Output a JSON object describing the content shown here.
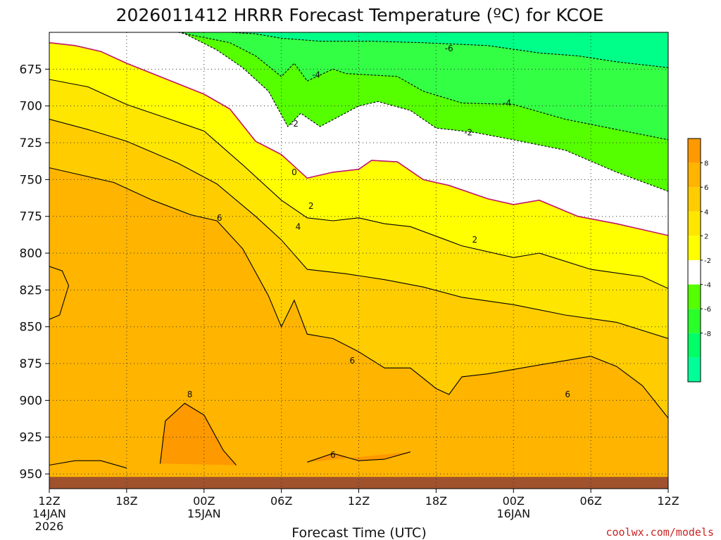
{
  "chart_data": {
    "type": "heatmap",
    "title": "2026011412 HRRR Forecast Temperature (ºC) for KCOE",
    "xlabel": "Forecast Time (UTC)",
    "ylabel": "",
    "credit": "coolwx.com/models",
    "y_axis": {
      "units": "hPa",
      "range": [
        960,
        650
      ],
      "ticks": [
        675,
        700,
        725,
        750,
        775,
        800,
        825,
        850,
        875,
        900,
        925,
        950
      ]
    },
    "x_axis": {
      "units": "forecast hour",
      "range": [
        0,
        48
      ],
      "ticks": [
        {
          "hour": 0,
          "label": "12Z",
          "label2": "14JAN",
          "label3": "2026"
        },
        {
          "hour": 6,
          "label": "18Z",
          "label2": "",
          "label3": ""
        },
        {
          "hour": 12,
          "label": "00Z",
          "label2": "15JAN",
          "label3": ""
        },
        {
          "hour": 18,
          "label": "06Z",
          "label2": "",
          "label3": ""
        },
        {
          "hour": 24,
          "label": "12Z",
          "label2": "",
          "label3": ""
        },
        {
          "hour": 30,
          "label": "18Z",
          "label2": "",
          "label3": ""
        },
        {
          "hour": 36,
          "label": "00Z",
          "label2": "16JAN",
          "label3": ""
        },
        {
          "hour": 42,
          "label": "06Z",
          "label2": "",
          "label3": ""
        },
        {
          "hour": 48,
          "label": "12Z",
          "label2": "",
          "label3": ""
        }
      ]
    },
    "grid": true,
    "colorbar": {
      "placement": "right",
      "labels": [
        "8",
        "6",
        "4",
        "2",
        "-2",
        "-4",
        "-6",
        "-8"
      ],
      "bins": [
        {
          "color": "#ff9900"
        },
        {
          "color": "#ffb400"
        },
        {
          "color": "#ffcc00"
        },
        {
          "color": "#ffe600"
        },
        {
          "color": "#ffff00"
        },
        {
          "color": "#ffffff"
        },
        {
          "color": "#55ff00"
        },
        {
          "color": "#2aff2a"
        },
        {
          "color": "#00ff66"
        },
        {
          "color": "#00ff99"
        }
      ]
    },
    "fill_colors": {
      "t_gt_8": "#ff9900",
      "t_6_8": "#ffb400",
      "t_4_6": "#ffcc00",
      "t_2_4": "#ffe600",
      "t_0_2": "#ffff00",
      "t_m2_0": "#ffffff",
      "t_m4_m2": "#55ff00",
      "t_m6_m4": "#33ff44",
      "t_lt_m6": "#00ff88",
      "ground": "#a0522d"
    },
    "contours": [
      {
        "level": -6,
        "style": "dashed",
        "points": [
          [
            8.7,
            650
          ],
          [
            14,
            650
          ],
          [
            16,
            651
          ],
          [
            18,
            654
          ],
          [
            21,
            656
          ],
          [
            25,
            656
          ],
          [
            29,
            657
          ],
          [
            34,
            659
          ],
          [
            38,
            664
          ],
          [
            41,
            666
          ],
          [
            44,
            670
          ],
          [
            48,
            674
          ]
        ]
      },
      {
        "level": -4,
        "style": "dashed",
        "points": [
          [
            10,
            650
          ],
          [
            14,
            657
          ],
          [
            16,
            666
          ],
          [
            18,
            680
          ],
          [
            19,
            671
          ],
          [
            20,
            683
          ],
          [
            22,
            675
          ],
          [
            23,
            678
          ],
          [
            27,
            680
          ],
          [
            29,
            690
          ],
          [
            32,
            698
          ],
          [
            36,
            699
          ],
          [
            40,
            709
          ],
          [
            44,
            716
          ],
          [
            48,
            723
          ]
        ]
      },
      {
        "level": -2,
        "style": "dashed",
        "points": [
          [
            10.3,
            650
          ],
          [
            13,
            662
          ],
          [
            15,
            674
          ],
          [
            17,
            690
          ],
          [
            18.5,
            714
          ],
          [
            19.5,
            705
          ],
          [
            21,
            714
          ],
          [
            24,
            700
          ],
          [
            25.5,
            697
          ],
          [
            28,
            703
          ],
          [
            30,
            715
          ],
          [
            33,
            718
          ],
          [
            36,
            723
          ],
          [
            40,
            730
          ],
          [
            44,
            745
          ],
          [
            48,
            758
          ]
        ]
      },
      {
        "level": 0,
        "style": "crimson",
        "points": [
          [
            0,
            657
          ],
          [
            2,
            659
          ],
          [
            4,
            663
          ],
          [
            6,
            671
          ],
          [
            8,
            678
          ],
          [
            12,
            692
          ],
          [
            14,
            702
          ],
          [
            16,
            724
          ],
          [
            18,
            733
          ],
          [
            20,
            749
          ],
          [
            22,
            745
          ],
          [
            24,
            743
          ],
          [
            25,
            737
          ],
          [
            27,
            738
          ],
          [
            29,
            750
          ],
          [
            31,
            754
          ],
          [
            34,
            763
          ],
          [
            36,
            767
          ],
          [
            38,
            764
          ],
          [
            41,
            775
          ],
          [
            44,
            780
          ],
          [
            48,
            788
          ]
        ]
      },
      {
        "level": 2,
        "style": "solid",
        "points": [
          [
            0,
            682
          ],
          [
            3,
            687
          ],
          [
            6,
            699
          ],
          [
            9,
            708
          ],
          [
            12,
            717
          ],
          [
            15,
            740
          ],
          [
            18,
            764
          ],
          [
            20,
            776
          ],
          [
            22,
            778
          ],
          [
            24,
            776
          ],
          [
            26,
            780
          ],
          [
            28,
            782
          ],
          [
            32,
            795
          ],
          [
            36,
            803
          ],
          [
            38,
            800
          ],
          [
            42,
            811
          ],
          [
            46,
            816
          ],
          [
            48,
            824
          ]
        ]
      },
      {
        "level": 4,
        "style": "solid",
        "points": [
          [
            0,
            709
          ],
          [
            3,
            716
          ],
          [
            6,
            724
          ],
          [
            10,
            739
          ],
          [
            13,
            753
          ],
          [
            16,
            775
          ],
          [
            18,
            791
          ],
          [
            20,
            811
          ],
          [
            23,
            814
          ],
          [
            26,
            818
          ],
          [
            29,
            823
          ],
          [
            32,
            830
          ],
          [
            36,
            835
          ],
          [
            40,
            842
          ],
          [
            44,
            847
          ],
          [
            48,
            858
          ]
        ]
      },
      {
        "level": 6,
        "style": "solid",
        "points": [
          [
            0,
            742
          ],
          [
            2,
            746
          ],
          [
            5,
            752
          ],
          [
            8,
            764
          ],
          [
            11,
            774
          ],
          [
            13,
            778
          ],
          [
            15,
            797
          ],
          [
            17,
            829
          ],
          [
            18,
            850
          ],
          [
            19,
            832
          ],
          [
            20,
            855
          ],
          [
            22,
            858
          ],
          [
            24,
            867
          ],
          [
            26,
            878
          ],
          [
            28,
            878
          ],
          [
            30,
            892
          ],
          [
            31,
            896
          ],
          [
            32,
            884
          ],
          [
            34,
            882
          ],
          [
            36,
            879
          ],
          [
            38,
            876
          ],
          [
            40,
            873
          ],
          [
            42,
            870
          ],
          [
            44,
            877
          ],
          [
            46,
            890
          ],
          [
            48,
            912
          ]
        ]
      },
      {
        "level": 8,
        "style": "solid",
        "points": [
          [
            8.6,
            943
          ],
          [
            9,
            914
          ],
          [
            10.5,
            902
          ],
          [
            12,
            910
          ],
          [
            13.5,
            934
          ],
          [
            14.5,
            944
          ]
        ]
      },
      {
        "level": 6,
        "style": "solid",
        "points": [
          [
            0,
            944
          ],
          [
            2,
            941
          ],
          [
            4,
            941
          ],
          [
            6,
            946
          ]
        ]
      },
      {
        "level": 6,
        "style": "solid",
        "points": [
          [
            20,
            942
          ],
          [
            22,
            936
          ],
          [
            24,
            941
          ],
          [
            26,
            940
          ],
          [
            28,
            935
          ]
        ]
      },
      {
        "level": 8,
        "style": "solid",
        "points": [
          [
            0,
            809
          ],
          [
            1,
            812
          ],
          [
            1.5,
            822
          ],
          [
            0.8,
            842
          ],
          [
            0,
            845
          ]
        ]
      }
    ],
    "contour_labels": [
      {
        "text": "-6",
        "hour": 31,
        "p": 661
      },
      {
        "text": "-4",
        "hour": 20.7,
        "p": 679
      },
      {
        "text": "-4",
        "hour": 35.5,
        "p": 698
      },
      {
        "text": "-2",
        "hour": 19,
        "p": 712
      },
      {
        "text": "-2",
        "hour": 32.5,
        "p": 718
      },
      {
        "text": "0",
        "hour": 19,
        "p": 745
      },
      {
        "text": "2",
        "hour": 20.3,
        "p": 768
      },
      {
        "text": "4",
        "hour": 19.3,
        "p": 782
      },
      {
        "text": "6",
        "hour": 13.2,
        "p": 776
      },
      {
        "text": "2",
        "hour": 33,
        "p": 791
      },
      {
        "text": "6",
        "hour": 23.5,
        "p": 873
      },
      {
        "text": "8",
        "hour": 10.9,
        "p": 896
      },
      {
        "text": "6",
        "hour": 40.2,
        "p": 896
      },
      {
        "text": "6",
        "hour": 22,
        "p": 937
      }
    ]
  }
}
